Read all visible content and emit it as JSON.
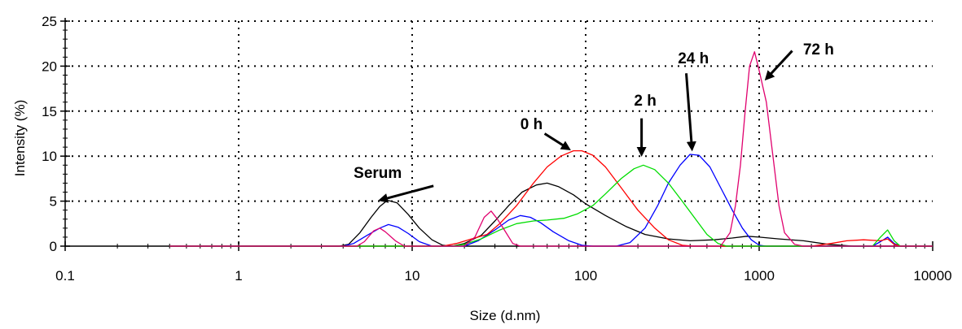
{
  "chart_data": {
    "type": "line",
    "xlabel": "Size (d.nm)",
    "ylabel": "Intensity (%)",
    "x_scale": "log",
    "xlim": [
      0.1,
      10000
    ],
    "ylim": [
      0,
      25
    ],
    "grid": true,
    "x_ticks": [
      {
        "value": 0.1,
        "label": "0.1"
      },
      {
        "value": 1,
        "label": "1"
      },
      {
        "value": 10,
        "label": "10"
      },
      {
        "value": 100,
        "label": "100"
      },
      {
        "value": 1000,
        "label": "1000"
      },
      {
        "value": 10000,
        "label": "10000"
      }
    ],
    "y_ticks": [
      {
        "value": 0,
        "label": "0"
      },
      {
        "value": 5,
        "label": "5"
      },
      {
        "value": 10,
        "label": "10"
      },
      {
        "value": 15,
        "label": "15"
      },
      {
        "value": 20,
        "label": "20"
      },
      {
        "value": 25,
        "label": "25"
      }
    ],
    "series": [
      {
        "color": "#000000",
        "points": [
          [
            0.4,
            0
          ],
          [
            3.8,
            0
          ],
          [
            4.3,
            0.2
          ],
          [
            5,
            1.5
          ],
          [
            5.8,
            3.2
          ],
          [
            6.5,
            4.4
          ],
          [
            7.2,
            5.1
          ],
          [
            8.2,
            4.8
          ],
          [
            9.5,
            3.5
          ],
          [
            11,
            2
          ],
          [
            13,
            0.7
          ],
          [
            15,
            0.1
          ],
          [
            17,
            0
          ],
          [
            20,
            0.3
          ],
          [
            25,
            1.2
          ],
          [
            30,
            2.8
          ],
          [
            36,
            4.5
          ],
          [
            43,
            6
          ],
          [
            52,
            6.8
          ],
          [
            60,
            7
          ],
          [
            70,
            6.6
          ],
          [
            85,
            5.7
          ],
          [
            100,
            4.7
          ],
          [
            130,
            3.4
          ],
          [
            170,
            2.2
          ],
          [
            220,
            1.3
          ],
          [
            300,
            0.8
          ],
          [
            400,
            0.6
          ],
          [
            550,
            0.7
          ],
          [
            700,
            0.9
          ],
          [
            850,
            1.1
          ],
          [
            1000,
            1
          ],
          [
            1300,
            0.8
          ],
          [
            1800,
            0.6
          ],
          [
            2500,
            0.2
          ],
          [
            3500,
            0
          ],
          [
            10000,
            0
          ]
        ]
      },
      {
        "color": "#0000ff",
        "points": [
          [
            0.4,
            0
          ],
          [
            4,
            0
          ],
          [
            4.6,
            0.3
          ],
          [
            5.5,
            1.2
          ],
          [
            6.5,
            2
          ],
          [
            7.3,
            2.4
          ],
          [
            8.3,
            2.1
          ],
          [
            9.5,
            1.4
          ],
          [
            11,
            0.5
          ],
          [
            13,
            0
          ],
          [
            20,
            0
          ],
          [
            24,
            0.6
          ],
          [
            30,
            1.8
          ],
          [
            36,
            2.9
          ],
          [
            42,
            3.4
          ],
          [
            48,
            3.2
          ],
          [
            55,
            2.6
          ],
          [
            65,
            1.6
          ],
          [
            80,
            0.6
          ],
          [
            95,
            0.1
          ],
          [
            110,
            0
          ],
          [
            150,
            0
          ],
          [
            180,
            0.4
          ],
          [
            220,
            2
          ],
          [
            260,
            4.5
          ],
          [
            300,
            7
          ],
          [
            350,
            9
          ],
          [
            400,
            10.2
          ],
          [
            450,
            10.1
          ],
          [
            520,
            8.8
          ],
          [
            600,
            6.5
          ],
          [
            700,
            4
          ],
          [
            800,
            2
          ],
          [
            900,
            0.7
          ],
          [
            1000,
            0.1
          ],
          [
            1100,
            0
          ],
          [
            4500,
            0
          ],
          [
            5000,
            0.5
          ],
          [
            5500,
            1
          ],
          [
            6000,
            0.3
          ],
          [
            6500,
            0
          ],
          [
            10000,
            0
          ]
        ]
      },
      {
        "color": "#ff0000",
        "points": [
          [
            0.4,
            0
          ],
          [
            15,
            0
          ],
          [
            18,
            0.3
          ],
          [
            22,
            0.8
          ],
          [
            27,
            1.3
          ],
          [
            32,
            2.5
          ],
          [
            40,
            4.5
          ],
          [
            50,
            7
          ],
          [
            60,
            8.8
          ],
          [
            72,
            10
          ],
          [
            85,
            10.6
          ],
          [
            95,
            10.6
          ],
          [
            110,
            10.1
          ],
          [
            130,
            8.8
          ],
          [
            160,
            6.5
          ],
          [
            200,
            4
          ],
          [
            250,
            2
          ],
          [
            300,
            0.7
          ],
          [
            360,
            0.1
          ],
          [
            420,
            0
          ],
          [
            2000,
            0
          ],
          [
            2600,
            0.3
          ],
          [
            3200,
            0.6
          ],
          [
            4000,
            0.7
          ],
          [
            5000,
            0.6
          ],
          [
            5500,
            0.8
          ],
          [
            6000,
            0.2
          ],
          [
            6500,
            0
          ],
          [
            10000,
            0
          ]
        ]
      },
      {
        "color": "#00dd00",
        "points": [
          [
            0.4,
            0
          ],
          [
            17,
            0
          ],
          [
            20,
            0.2
          ],
          [
            25,
            0.8
          ],
          [
            32,
            1.8
          ],
          [
            40,
            2.5
          ],
          [
            50,
            2.8
          ],
          [
            60,
            2.9
          ],
          [
            75,
            3.1
          ],
          [
            90,
            3.6
          ],
          [
            110,
            4.5
          ],
          [
            130,
            5.8
          ],
          [
            160,
            7.5
          ],
          [
            190,
            8.6
          ],
          [
            215,
            9
          ],
          [
            250,
            8.5
          ],
          [
            300,
            7
          ],
          [
            360,
            5
          ],
          [
            430,
            3
          ],
          [
            500,
            1.3
          ],
          [
            580,
            0.3
          ],
          [
            650,
            0
          ],
          [
            4500,
            0
          ],
          [
            5000,
            1
          ],
          [
            5500,
            1.8
          ],
          [
            6000,
            0.6
          ],
          [
            6500,
            0
          ],
          [
            10000,
            0
          ]
        ]
      },
      {
        "color": "#e0006e",
        "points": [
          [
            0.4,
            0
          ],
          [
            4.8,
            0
          ],
          [
            5.3,
            0.5
          ],
          [
            6,
            1.7
          ],
          [
            6.5,
            2
          ],
          [
            7,
            1.6
          ],
          [
            8,
            0.6
          ],
          [
            9,
            0
          ],
          [
            20,
            0
          ],
          [
            23,
            1
          ],
          [
            26,
            3.2
          ],
          [
            28.5,
            3.9
          ],
          [
            31,
            3
          ],
          [
            34,
            1.8
          ],
          [
            38,
            0.3
          ],
          [
            42,
            0
          ],
          [
            600,
            0
          ],
          [
            680,
            1.5
          ],
          [
            730,
            4.5
          ],
          [
            780,
            9
          ],
          [
            830,
            15
          ],
          [
            880,
            20
          ],
          [
            940,
            21.6
          ],
          [
            1000,
            19.5
          ],
          [
            1100,
            16
          ],
          [
            1200,
            10
          ],
          [
            1300,
            4.5
          ],
          [
            1400,
            1.5
          ],
          [
            1600,
            0.2
          ],
          [
            1800,
            0
          ],
          [
            10000,
            0
          ]
        ]
      }
    ],
    "annotations": [
      {
        "text": "Serum",
        "text_x": 4.6,
        "text_y": 7.6,
        "arrow_from": [
          6.7,
          5.2
        ],
        "arrow_to": [
          7.0,
          5.3
        ]
      },
      {
        "text": "0 h",
        "text_x": 42,
        "text_y": 13.0,
        "arrow_from": [
          58,
          12.5
        ],
        "arrow_to": [
          80,
          10.8
        ]
      },
      {
        "text": "2 h",
        "text_x": 190,
        "text_y": 15.6,
        "arrow_from": [
          210,
          14.2
        ],
        "arrow_to": [
          210,
          10.2
        ]
      },
      {
        "text": "24 h",
        "text_x": 340,
        "text_y": 20.3,
        "arrow_from": [
          380,
          19.2
        ],
        "arrow_to": [
          410,
          10.8
        ]
      },
      {
        "text": "72 h",
        "text_x": 1790,
        "text_y": 21.3,
        "arrow_from": [
          1550,
          21.7
        ],
        "arrow_to": [
          1100,
          18.6
        ]
      }
    ]
  }
}
